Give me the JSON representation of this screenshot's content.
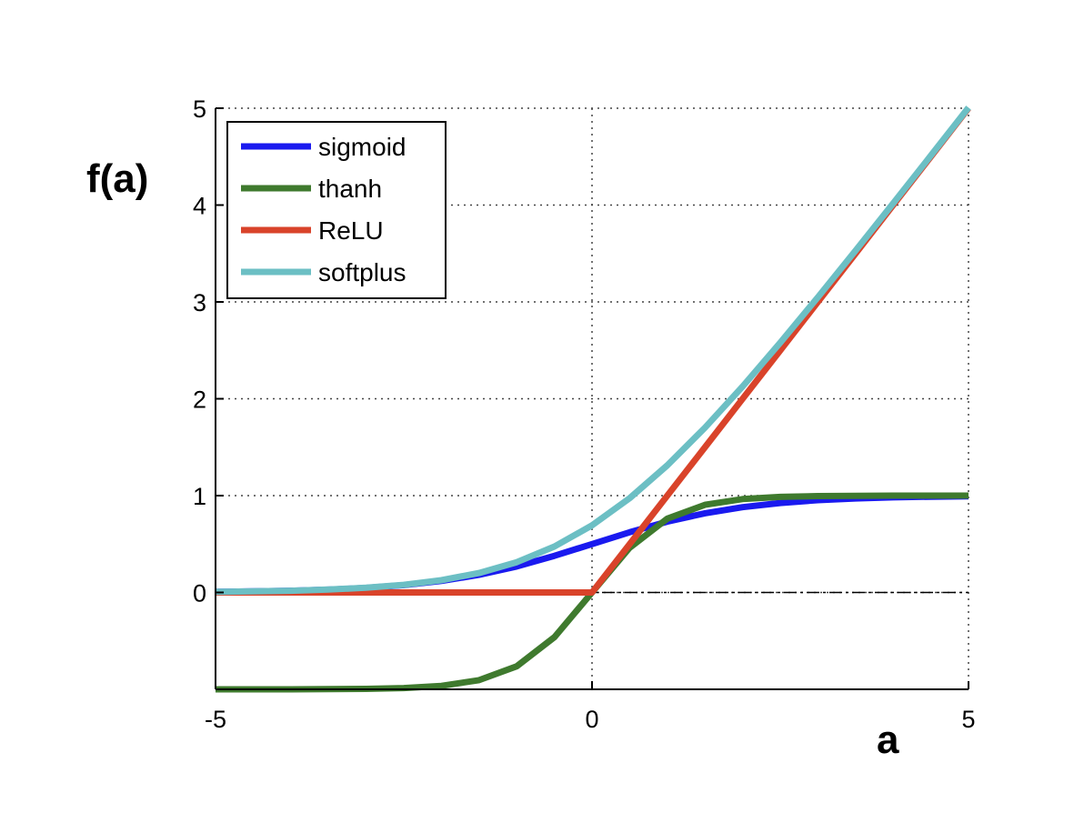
{
  "chart_data": {
    "type": "line",
    "xlabel": "a",
    "ylabel": "f(a)",
    "xlim": [
      -5,
      5
    ],
    "ylim": [
      -1,
      5
    ],
    "xticks": [
      "-5",
      "0",
      "5"
    ],
    "yticks": [
      "0",
      "1",
      "2",
      "3",
      "4",
      "5"
    ],
    "grid": true,
    "legend_position": "top-left",
    "reference_line": {
      "y": 0,
      "style": "dash-dot",
      "color": "#000000"
    },
    "x": [
      -5,
      -4.5,
      -4,
      -3.5,
      -3,
      -2.5,
      -2,
      -1.5,
      -1,
      -0.5,
      0,
      0.5,
      1,
      1.5,
      2,
      2.5,
      3,
      3.5,
      4,
      4.5,
      5
    ],
    "series": [
      {
        "name": "sigmoid",
        "color": "#1a1aef",
        "values": [
          0.007,
          0.011,
          0.018,
          0.029,
          0.047,
          0.076,
          0.119,
          0.182,
          0.269,
          0.378,
          0.5,
          0.622,
          0.731,
          0.818,
          0.881,
          0.924,
          0.953,
          0.971,
          0.982,
          0.989,
          0.993
        ]
      },
      {
        "name": "thanh",
        "color": "#3f7a2e",
        "values": [
          -1.0,
          -1.0,
          -1.0,
          -0.998,
          -0.995,
          -0.987,
          -0.964,
          -0.905,
          -0.762,
          -0.462,
          0.0,
          0.462,
          0.762,
          0.905,
          0.964,
          0.987,
          0.995,
          0.998,
          1.0,
          1.0,
          1.0
        ]
      },
      {
        "name": "ReLU",
        "color": "#d9432a",
        "values": [
          0,
          0,
          0,
          0,
          0,
          0,
          0,
          0,
          0,
          0,
          0,
          0.5,
          1,
          1.5,
          2,
          2.5,
          3,
          3.5,
          4,
          4.5,
          5
        ]
      },
      {
        "name": "softplus",
        "color": "#6cbfc4",
        "values": [
          0.007,
          0.011,
          0.018,
          0.03,
          0.049,
          0.079,
          0.127,
          0.201,
          0.313,
          0.474,
          0.693,
          0.974,
          1.313,
          1.701,
          2.127,
          2.579,
          3.049,
          3.53,
          4.018,
          4.511,
          5.007
        ]
      }
    ]
  }
}
